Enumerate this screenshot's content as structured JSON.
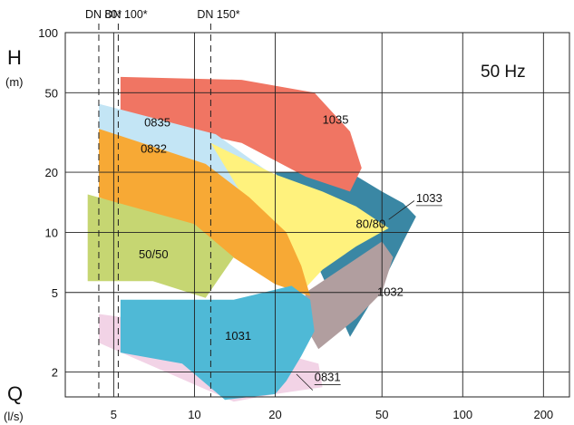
{
  "chart_data": {
    "type": "area",
    "title": "",
    "annotation": "50 Hz",
    "axes": {
      "x": {
        "letter": "Q",
        "unit": "(l/s)",
        "scale": "log",
        "range": [
          3.3,
          250
        ],
        "ticks": [
          5,
          10,
          20,
          50,
          100,
          200
        ]
      },
      "y": {
        "letter": "H",
        "unit": "(m)",
        "scale": "log",
        "range": [
          1.5,
          100
        ],
        "ticks": [
          2,
          5,
          10,
          20,
          50,
          100
        ]
      }
    },
    "grid": true,
    "pipe_sizes": [
      {
        "label": "DN 80*",
        "q": 4.4
      },
      {
        "label": "DN 100*",
        "q": 5.2
      },
      {
        "label": "DN 150*",
        "q": 11.5
      }
    ],
    "series": [
      {
        "name": "0831",
        "color": "#f2d3e6",
        "label_at": [
          28,
          1.8
        ],
        "leader": [
          [
            28,
            1.8
          ],
          [
            24,
            1.8
          ]
        ],
        "points": [
          [
            4.4,
            3.9
          ],
          [
            4.4,
            2.8
          ],
          [
            14,
            1.42
          ],
          [
            20,
            1.55
          ],
          [
            30,
            1.68
          ],
          [
            29,
            2.2
          ],
          [
            8,
            3.5
          ]
        ]
      },
      {
        "name": "1033",
        "color": "#3a87a4",
        "label_at": [
          67,
          14.2
        ],
        "leader": [
          [
            57,
            14.2
          ],
          [
            80,
            14.2
          ]
        ],
        "points": [
          [
            20,
            20
          ],
          [
            38,
            20
          ],
          [
            50,
            16
          ],
          [
            60,
            14
          ],
          [
            67,
            12
          ],
          [
            60,
            9
          ],
          [
            50,
            5.5
          ],
          [
            38,
            3
          ]
        ]
      },
      {
        "name": "1032",
        "color": "#b19e9f",
        "label_at": [
          48,
          4.8
        ],
        "points": [
          [
            26,
            5
          ],
          [
            50,
            9
          ],
          [
            55,
            7.5
          ],
          [
            50,
            5
          ],
          [
            40,
            3.7
          ],
          [
            29,
            2.6
          ],
          [
            25,
            3.7
          ]
        ]
      },
      {
        "name": "1035",
        "color": "#f07563",
        "label_at": [
          30,
          35
        ],
        "points": [
          [
            5.3,
            60
          ],
          [
            15,
            58
          ],
          [
            28,
            50
          ],
          [
            38,
            32
          ],
          [
            42,
            21
          ],
          [
            38,
            16
          ],
          [
            26,
            19
          ],
          [
            15,
            28
          ],
          [
            5.3,
            38
          ]
        ]
      },
      {
        "name": "0835",
        "color": "#c3e5f5",
        "label_at": [
          6.5,
          34
        ],
        "points": [
          [
            4.4,
            44
          ],
          [
            12,
            31
          ],
          [
            18,
            21
          ],
          [
            26,
            15
          ],
          [
            26,
            7.8
          ],
          [
            20,
            9
          ],
          [
            12,
            16
          ],
          [
            5.5,
            26
          ],
          [
            4.4,
            27
          ]
        ]
      },
      {
        "name": "80/80",
        "color": "#fff27d",
        "label_at": [
          40,
          10.5
        ],
        "points": [
          [
            11.5,
            28
          ],
          [
            20,
            19.5
          ],
          [
            30,
            16
          ],
          [
            40,
            13.5
          ],
          [
            53,
            10.5
          ],
          [
            40,
            8.5
          ],
          [
            30,
            6.5
          ],
          [
            25,
            5
          ]
        ]
      },
      {
        "name": "0832",
        "color": "#f7a935",
        "label_at": [
          6.3,
          25
        ],
        "points": [
          [
            4.4,
            33
          ],
          [
            11,
            22
          ],
          [
            16,
            15
          ],
          [
            22,
            10
          ],
          [
            25,
            6.8
          ],
          [
            27,
            4.8
          ],
          [
            20,
            5.5
          ],
          [
            10,
            10
          ],
          [
            4.4,
            15
          ]
        ]
      },
      {
        "name": "1031",
        "color": "#4fb9d6",
        "label_at": [
          13,
          2.9
        ],
        "points": [
          [
            5.3,
            4.6
          ],
          [
            14,
            4.6
          ],
          [
            23,
            5.4
          ],
          [
            27,
            4.6
          ],
          [
            28,
            3.2
          ],
          [
            25,
            2.4
          ],
          [
            22,
            1.8
          ],
          [
            20,
            1.55
          ],
          [
            13,
            1.45
          ],
          [
            9,
            2.2
          ],
          [
            5.3,
            2.5
          ]
        ]
      },
      {
        "name": "50/50",
        "color": "#c6d672",
        "label_at": [
          6.2,
          7.4
        ],
        "points": [
          [
            4,
            15.5
          ],
          [
            10,
            11
          ],
          [
            14,
            7.5
          ],
          [
            11,
            4.7
          ],
          [
            7,
            5.7
          ],
          [
            4,
            5.7
          ]
        ]
      }
    ]
  }
}
